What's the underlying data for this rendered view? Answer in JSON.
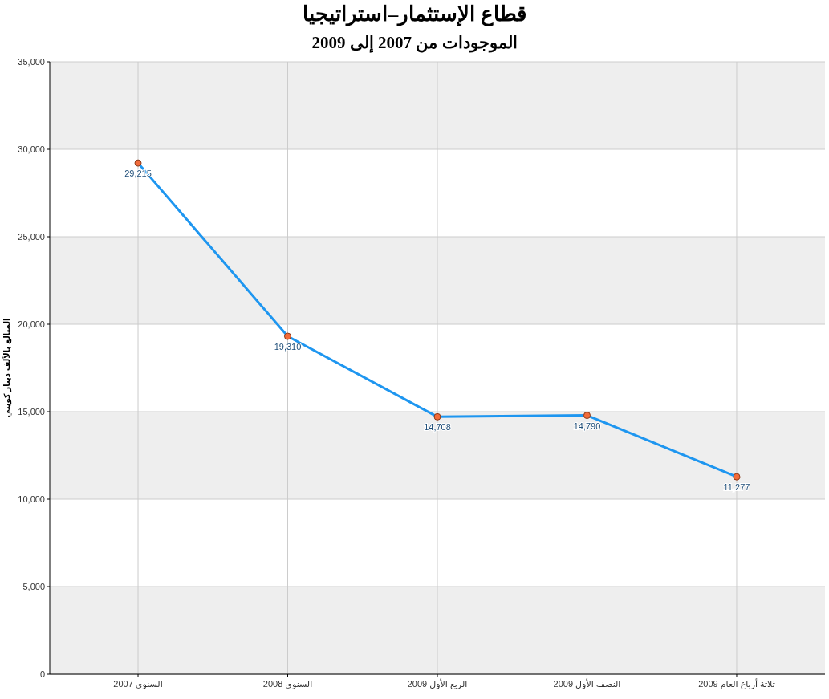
{
  "chart_data": {
    "type": "line",
    "title": "قطاع الإستثمار–استراتيجيا",
    "subtitle": "الموجودات من 2007 إلى 2009",
    "ylabel": "المبالغ بالألف دينار كويتي",
    "categories": [
      "السنوي 2007",
      "السنوي 2008",
      "الربع الأول 2009",
      "النصف الأول 2009",
      "ثلاثة أرباع العام 2009"
    ],
    "series": [
      {
        "color": "#1e96f0",
        "values": [
          29215,
          19310,
          14708,
          14790,
          11277
        ],
        "value_labels": [
          "29,215",
          "19,310",
          "14,708",
          "14,790",
          "11,277"
        ]
      }
    ],
    "ylim": [
      0,
      35000
    ],
    "yticks": [
      {
        "value": 0,
        "label": "0"
      },
      {
        "value": 5000,
        "label": "5,000"
      },
      {
        "value": 10000,
        "label": "10,000"
      },
      {
        "value": 15000,
        "label": "15,000"
      },
      {
        "value": 20000,
        "label": "20,000"
      },
      {
        "value": 25000,
        "label": "25,000"
      },
      {
        "value": 30000,
        "label": "30,000"
      },
      {
        "value": 35000,
        "label": "35,000"
      }
    ],
    "grid": true,
    "marker": "circle",
    "line_style": "solid"
  }
}
